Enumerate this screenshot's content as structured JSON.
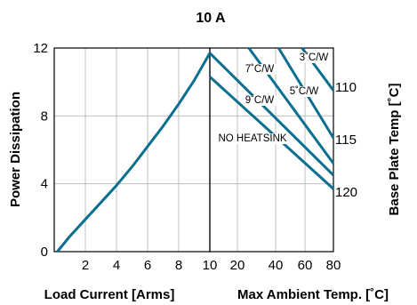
{
  "chart_data": {
    "type": "line",
    "title": "10 A",
    "colors": {
      "series": "#0b6f8f"
    },
    "left_panel": {
      "xlabel": "Load Current [Arms]",
      "ylabel": "Power Dissipation",
      "x_ticks": [
        2,
        4,
        6,
        8,
        10
      ],
      "xlim": [
        0,
        10
      ],
      "y_ticks": [
        0,
        4,
        8,
        12
      ],
      "ylim": [
        0,
        12
      ],
      "series": [
        {
          "x": [
            0.2,
            1,
            2,
            3,
            4,
            5,
            6,
            7,
            8,
            9,
            10
          ],
          "y": [
            0,
            0.9,
            1.9,
            2.9,
            3.9,
            5.0,
            6.2,
            7.4,
            8.7,
            10.1,
            11.7
          ]
        }
      ]
    },
    "right_panel": {
      "xlabel": "Max Ambient Temp. [˚C]",
      "y2label": "Base Plate Temp [˚C]",
      "x_ticks": [
        10,
        20,
        40,
        60,
        80
      ],
      "xlim": [
        10,
        80
      ],
      "y2_ticks": [
        110,
        115,
        120
      ],
      "lines": [
        {
          "label": "3˚C/W",
          "x": [
            58,
            80
          ],
          "y": [
            12,
            9.5
          ]
        },
        {
          "label": "5˚C/W",
          "x": [
            42,
            80
          ],
          "y": [
            12,
            6.7
          ]
        },
        {
          "label": "7˚C/W",
          "x": [
            26,
            80
          ],
          "y": [
            12,
            5.2
          ]
        },
        {
          "label": "9˚C/W",
          "x": [
            10,
            80
          ],
          "y": [
            11.7,
            4.5
          ]
        },
        {
          "label": "NO HEATSINK",
          "x": [
            10,
            80
          ],
          "y": [
            10.3,
            3.7
          ]
        }
      ]
    }
  }
}
